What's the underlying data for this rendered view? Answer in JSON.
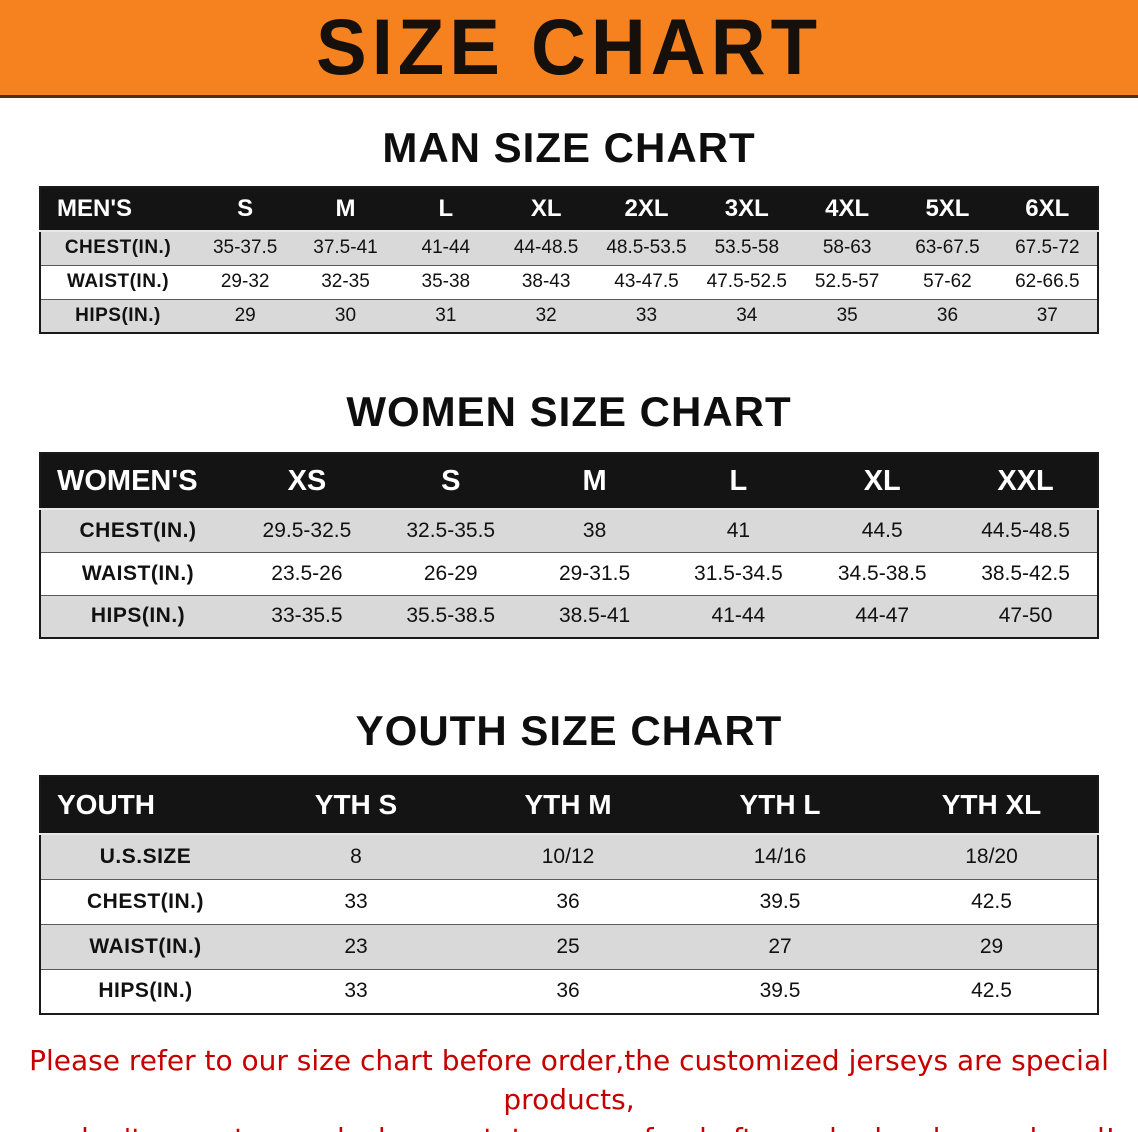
{
  "banner": {
    "title": "SIZE CHART",
    "bg_color": "#f5821e"
  },
  "sections": [
    {
      "heading": "MAN SIZE CHART",
      "table": {
        "header_label": "MEN'S",
        "columns": [
          "S",
          "M",
          "L",
          "XL",
          "2XL",
          "3XL",
          "4XL",
          "5XL",
          "6XL"
        ],
        "rows": [
          {
            "label": "CHEST(IN.)",
            "values": [
              "35-37.5",
              "37.5-41",
              "41-44",
              "44-48.5",
              "48.5-53.5",
              "53.5-58",
              "58-63",
              "63-67.5",
              "67.5-72"
            ]
          },
          {
            "label": "WAIST(IN.)",
            "values": [
              "29-32",
              "32-35",
              "35-38",
              "38-43",
              "43-47.5",
              "47.5-52.5",
              "52.5-57",
              "57-62",
              "62-66.5"
            ]
          },
          {
            "label": "HIPS(IN.)",
            "values": [
              "29",
              "30",
              "31",
              "32",
              "33",
              "34",
              "35",
              "36",
              "37"
            ]
          }
        ]
      }
    },
    {
      "heading": "WOMEN SIZE CHART",
      "table": {
        "header_label": "WOMEN'S",
        "columns": [
          "XS",
          "S",
          "M",
          "L",
          "XL",
          "XXL"
        ],
        "rows": [
          {
            "label": "CHEST(IN.)",
            "values": [
              "29.5-32.5",
              "32.5-35.5",
              "38",
              "41",
              "44.5",
              "44.5-48.5"
            ]
          },
          {
            "label": "WAIST(IN.)",
            "values": [
              "23.5-26",
              "26-29",
              "29-31.5",
              "31.5-34.5",
              "34.5-38.5",
              "38.5-42.5"
            ]
          },
          {
            "label": "HIPS(IN.)",
            "values": [
              "33-35.5",
              "35.5-38.5",
              "38.5-41",
              "41-44",
              "44-47",
              "47-50"
            ]
          }
        ]
      }
    },
    {
      "heading": "YOUTH SIZE CHART",
      "table": {
        "header_label": "YOUTH",
        "columns": [
          "YTH S",
          "YTH M",
          "YTH L",
          "YTH XL"
        ],
        "rows": [
          {
            "label": "U.S.SIZE",
            "values": [
              "8",
              "10/12",
              "14/16",
              "18/20"
            ]
          },
          {
            "label": "CHEST(IN.)",
            "values": [
              "33",
              "36",
              "39.5",
              "42.5"
            ]
          },
          {
            "label": "WAIST(IN.)",
            "values": [
              "23",
              "25",
              "27",
              "29"
            ]
          },
          {
            "label": "HIPS(IN.)",
            "values": [
              "33",
              "36",
              "39.5",
              "42.5"
            ]
          }
        ]
      }
    }
  ],
  "footer_note": {
    "line1": "Please refer to our size chart before order,the customized jerseys are special products,",
    "line2": "we don't accept cancel, change, teturn or refund after order has been placed!",
    "color": "#c50000"
  }
}
